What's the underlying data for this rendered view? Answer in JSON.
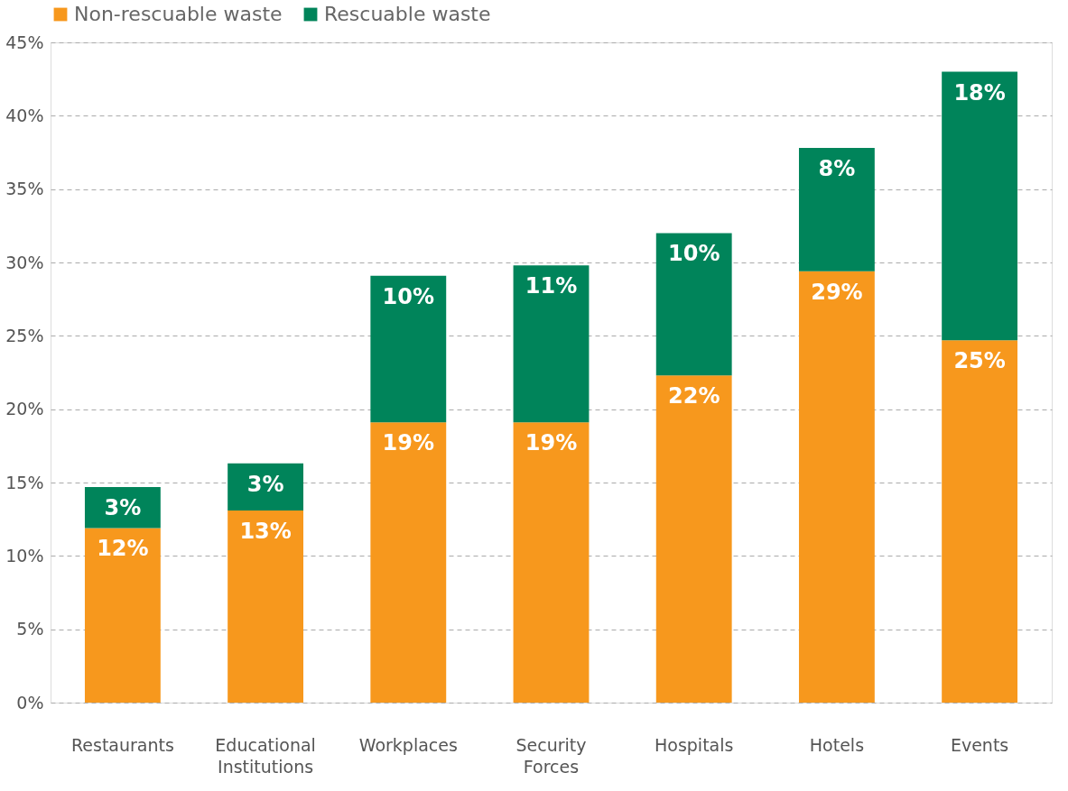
{
  "chart_data": {
    "type": "bar",
    "stacked": true,
    "categories": [
      "Restaurants",
      "Educational Institutions",
      "Workplaces",
      "Security Forces",
      "Hospitals",
      "Hotels",
      "Events"
    ],
    "series": [
      {
        "name": "Non-rescuable waste",
        "color": "#f7981d",
        "values": [
          11.9,
          13.1,
          19.1,
          19.1,
          22.3,
          29.4,
          24.7
        ],
        "value_labels": [
          "12%",
          "13%",
          "19%",
          "19%",
          "22%",
          "29%",
          "25%"
        ]
      },
      {
        "name": "Rescuable waste",
        "color": "#00845a",
        "values": [
          2.8,
          3.2,
          10.0,
          10.7,
          9.7,
          8.4,
          18.3
        ],
        "value_labels": [
          "3%",
          "3%",
          "10%",
          "11%",
          "10%",
          "8%",
          "18%"
        ]
      }
    ],
    "ylim": [
      0,
      45
    ],
    "yticks": [
      {
        "value": 0,
        "label": "0%"
      },
      {
        "value": 5,
        "label": "5%"
      },
      {
        "value": 10,
        "label": "10%"
      },
      {
        "value": 15,
        "label": "15%"
      },
      {
        "value": 20,
        "label": "20%"
      },
      {
        "value": 25,
        "label": "25%"
      },
      {
        "value": 30,
        "label": "30%"
      },
      {
        "value": 35,
        "label": "35%"
      },
      {
        "value": 40,
        "label": "40%"
      },
      {
        "value": 45,
        "label": "45%"
      }
    ],
    "grid": "y",
    "legend": "top left"
  }
}
